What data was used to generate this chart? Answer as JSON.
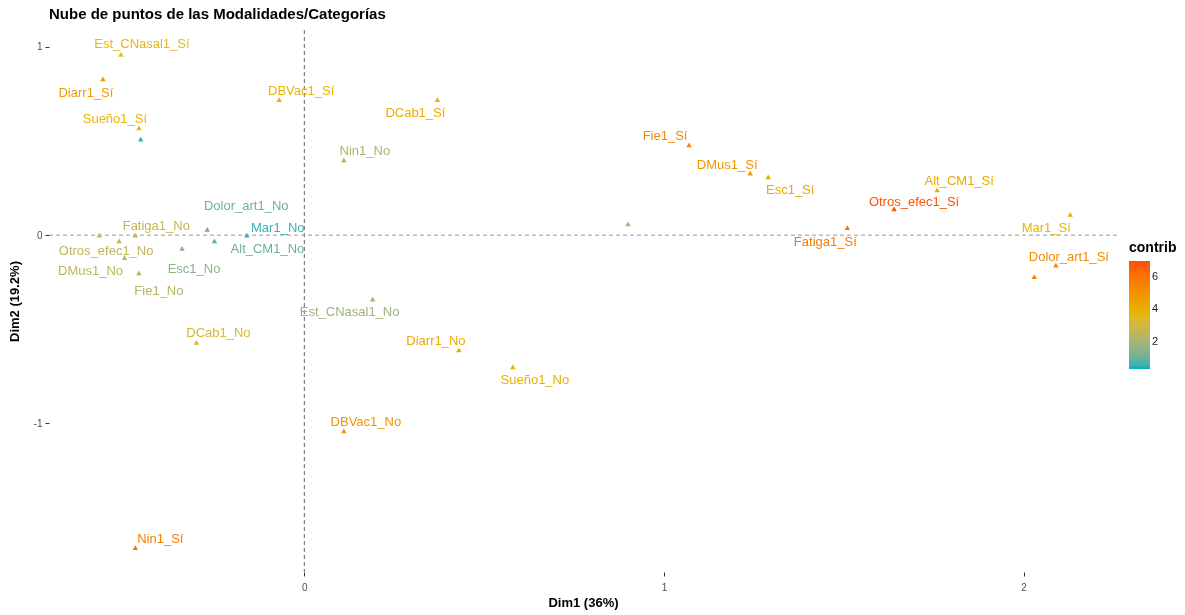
{
  "chart_data": {
    "type": "scatter",
    "title": "Nube de puntos de las Modalidades/Categorías",
    "xlabel": "Dim1 (36%)",
    "ylabel": "Dim2 (19.2%)",
    "clabel": "contrib",
    "x": [
      -0.51,
      -0.56,
      -0.46,
      -0.455,
      -0.07,
      0.37,
      0.11,
      -0.27,
      -0.57,
      -0.47,
      -0.515,
      -0.34,
      -0.25,
      -0.16,
      -0.5,
      -0.46,
      0.19,
      -0.3,
      0.43,
      0.58,
      0.11,
      0.9,
      1.07,
      1.24,
      1.29,
      1.76,
      1.64,
      1.51,
      2.13,
      2.09,
      2.03,
      -0.47
    ],
    "values": [
      0.96,
      0.83,
      0.57,
      0.51,
      0.72,
      0.72,
      0.4,
      0.03,
      0.0,
      0.0,
      -0.03,
      -0.07,
      -0.03,
      0.0,
      -0.12,
      -0.2,
      -0.34,
      -0.57,
      -0.61,
      -0.7,
      -1.04,
      0.06,
      0.48,
      0.33,
      0.31,
      0.24,
      0.14,
      0.04,
      0.11,
      -0.16,
      -0.22,
      -1.66
    ],
    "cvalues": [
      3.5,
      4.8,
      3.8,
      0.5,
      3.8,
      4.0,
      2.2,
      1.0,
      2.8,
      2.7,
      2.6,
      1.5,
      0.9,
      0.5,
      2.5,
      2.4,
      1.8,
      3.2,
      4.2,
      4.0,
      5.0,
      2.0,
      5.3,
      5.0,
      4.3,
      4.2,
      6.9,
      5.8,
      3.8,
      5.3,
      5.5,
      5.8
    ],
    "value_labels": [
      "Est_CNasal1_Sí",
      "Diarr1_Sí",
      "Sueño1_Sí",
      null,
      "DBVac1_Sí",
      "DCab1_Sí",
      "Nin1_No",
      "Dolor_art1_No",
      null,
      "Fatiga1_No",
      "Otros_efec1_No",
      "Esc1_No",
      "Alt_CM1_No",
      "Mar1_No",
      "DMus1_No",
      "Fie1_No",
      "Est_CNasal1_No",
      "DCab1_No",
      "Diarr1_No",
      "Sueño1_No",
      "DBVac1_No",
      null,
      "Fie1_Sí",
      "DMus1_Sí",
      "Esc1_Sí",
      "Alt_CM1_Sí",
      "Otros_efec1_Sí",
      "Fatiga1_Sí",
      "Mar1_Sí",
      "Dolor_art1_Sí",
      null,
      "Nin1_Sí"
    ],
    "clim": [
      0.3,
      7.0
    ],
    "cticks": [
      2,
      4,
      6
    ],
    "xlim": [
      -0.71,
      2.26
    ],
    "ylim": [
      -1.79,
      1.09
    ],
    "xticks": [
      0,
      1,
      2
    ],
    "yticks": [
      -1,
      0,
      1
    ],
    "marker": "triangle",
    "ref_lines": [
      {
        "axis": "x",
        "value": 0,
        "color": "#666666",
        "line_style": "dashed"
      },
      {
        "axis": "y",
        "value": 0,
        "color": "#999999",
        "line_style": "dashed"
      }
    ]
  }
}
